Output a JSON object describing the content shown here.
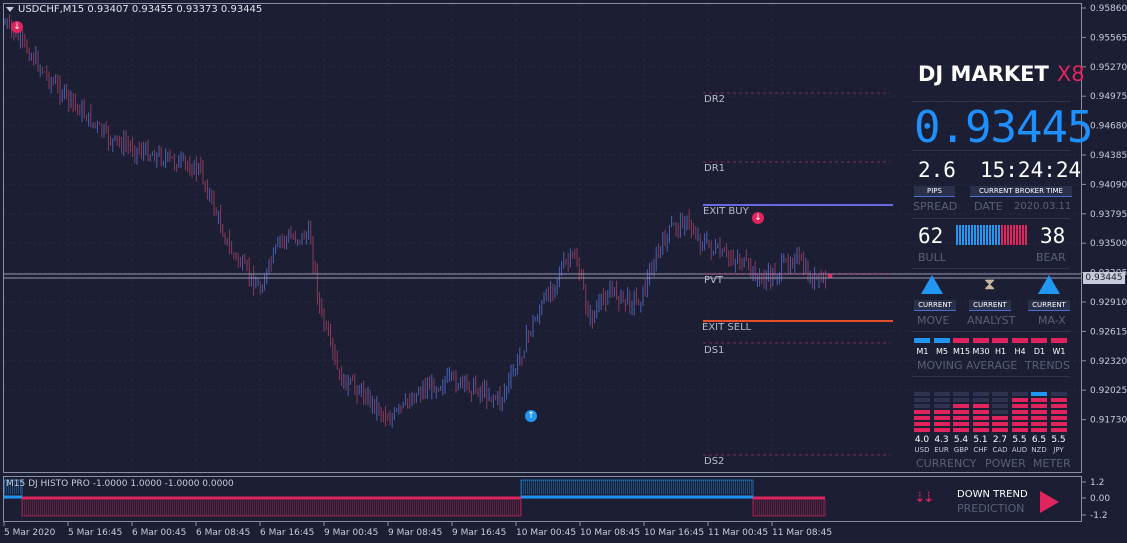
{
  "window": {
    "title": "USDCHF,M15  0.93407 0.93455 0.93373 0.93445"
  },
  "price_axis": {
    "ticks": [
      "0.95860",
      "0.95565",
      "0.95270",
      "0.94975",
      "0.94680",
      "0.94385",
      "0.94090",
      "0.93795",
      "0.93500",
      "0.93205",
      "0.92910",
      "0.92615",
      "0.92320",
      "0.92025",
      "0.91730"
    ],
    "current_price_tag": "0.93445"
  },
  "indicator_axis": {
    "ticks": [
      "1.2",
      "0.00",
      "-1.2"
    ]
  },
  "time_axis": {
    "ticks": [
      "5 Mar 2020",
      "5 Mar 16:45",
      "6 Mar 00:45",
      "6 Mar 08:45",
      "6 Mar 16:45",
      "9 Mar 00:45",
      "9 Mar 08:45",
      "9 Mar 16:45",
      "10 Mar 00:45",
      "10 Mar 08:45",
      "10 Mar 16:45",
      "11 Mar 00:45",
      "11 Mar 08:45"
    ]
  },
  "levels": {
    "dr2": "DR2",
    "dr1": "DR1",
    "exit_buy": "EXIT BUY",
    "pvt": "PVT",
    "exit_sell": "EXIT SELL",
    "ds1": "DS1",
    "ds2": "DS2"
  },
  "indicator": {
    "title": "M15 DJ HISTO PRO -1.0000 1.0000 -1.0000 0.0000"
  },
  "panel": {
    "logo_text": "DJ MARKET",
    "logo_suffix": "X8",
    "price": "0.93445",
    "spread_value": "2.6",
    "spread_unit": "PIPS",
    "spread_label": "SPREAD",
    "time_value": "15:24:24",
    "time_unit": "CURRENT BROKER TIME",
    "date_label": "DATE",
    "date_value": "2020.03.11",
    "bull_value": "62",
    "bear_value": "38",
    "bull_label": "BULL",
    "bear_label": "BEAR",
    "move_tag": "CURRENT",
    "move_label": "MOVE",
    "analyst_tag": "CURRENT",
    "analyst_label": "ANALYST",
    "max_tag": "CURRENT",
    "max_label": "MA-X",
    "timeframes": [
      "M1",
      "M5",
      "M15",
      "M30",
      "H1",
      "H4",
      "D1",
      "W1"
    ],
    "timeframe_colors": [
      "#2196f3",
      "#2196f3",
      "#e0245e",
      "#e0245e",
      "#e0245e",
      "#e0245e",
      "#e0245e",
      "#e0245e"
    ],
    "ma_label_1": "MOVING",
    "ma_label_2": "AVERAGE",
    "ma_label_3": "TRENDS",
    "currencies": [
      "USD",
      "EUR",
      "GBP",
      "CHF",
      "CAD",
      "AUD",
      "NZD",
      "JPY"
    ],
    "currency_values": [
      "4.0",
      "4.3",
      "5.4",
      "5.1",
      "2.7",
      "5.5",
      "6.5",
      "5.5"
    ],
    "meter_label_1": "CURRENCY",
    "meter_label_2": "POWER",
    "meter_label_3": "METER",
    "prediction_line1": "DOWN TREND",
    "prediction_line2": "PREDICTION"
  },
  "colors": {
    "bull": "#2196f3",
    "bear": "#e0245e",
    "background": "#1c1f33"
  }
}
